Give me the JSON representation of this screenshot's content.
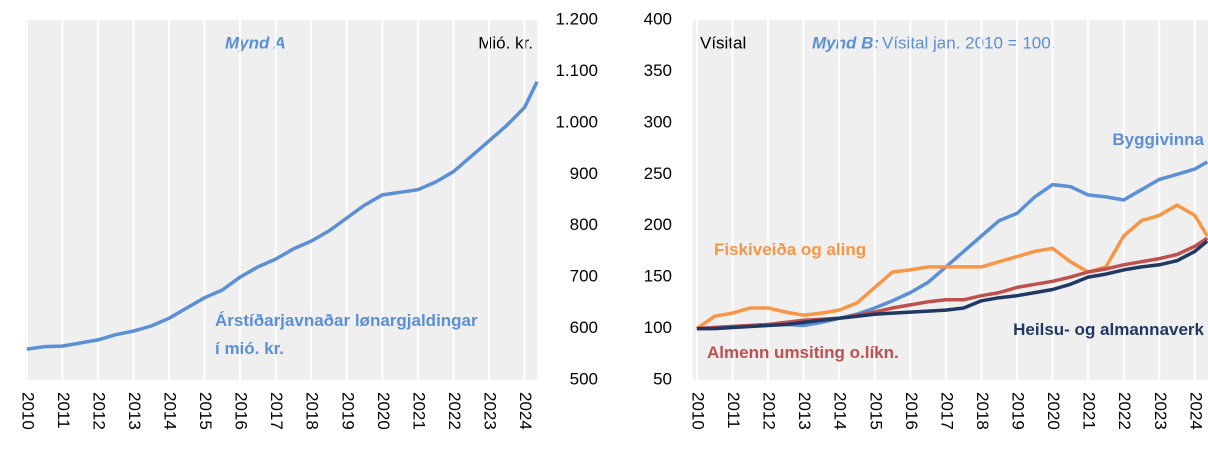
{
  "chart_data": [
    {
      "type": "line",
      "title": "Mynd A",
      "unit_label": "Mió. kr.",
      "yaxis_position": "right",
      "grid": "x",
      "background": "#efefef",
      "xlim": [
        2009.95,
        2024.35
      ],
      "xticks": [
        2010,
        2011,
        2012,
        2013,
        2014,
        2015,
        2016,
        2017,
        2018,
        2019,
        2020,
        2021,
        2022,
        2023,
        2024
      ],
      "ylim": [
        500,
        1200
      ],
      "yticks": [
        500,
        600,
        700,
        800,
        900,
        {
          "value": 1000,
          "label": "1.000"
        },
        {
          "value": 1100,
          "label": "1.100"
        },
        {
          "value": 1200,
          "label": "1.200"
        }
      ],
      "x": [
        2010,
        2010.5,
        2011,
        2011.5,
        2012,
        2012.5,
        2013,
        2013.5,
        2014,
        2014.5,
        2015,
        2015.5,
        2016,
        2016.5,
        2017,
        2017.5,
        2018,
        2018.5,
        2019,
        2019.5,
        2020,
        2020.5,
        2021,
        2021.5,
        2022,
        2022.5,
        2023,
        2023.5,
        2024,
        2024.35
      ],
      "series": [
        {
          "name": "Árstíðarjavnaðar lønargjaldingar í mió. kr.",
          "color": "#5b8fd6",
          "values": [
            560,
            565,
            566,
            572,
            578,
            588,
            595,
            605,
            620,
            640,
            660,
            675,
            700,
            720,
            735,
            755,
            770,
            790,
            815,
            840,
            860,
            865,
            870,
            885,
            905,
            935,
            965,
            995,
            1030,
            1080
          ]
        }
      ]
    },
    {
      "type": "line",
      "title": "Mynd B:",
      "subtitle": "Vísital jan. 2010 = 100.",
      "ylabel": "Vísital",
      "yaxis_position": "left",
      "grid": "x",
      "background": "#efefef",
      "xlim": [
        2009.89,
        2024.37
      ],
      "xticks": [
        2010,
        2011,
        2012,
        2013,
        2014,
        2015,
        2016,
        2017,
        2018,
        2019,
        2020,
        2021,
        2022,
        2023,
        2024
      ],
      "ylim": [
        50,
        400
      ],
      "yticks": [
        50,
        100,
        150,
        200,
        250,
        300,
        350,
        400
      ],
      "x": [
        2010,
        2010.5,
        2011,
        2011.5,
        2012,
        2012.5,
        2013,
        2013.5,
        2014,
        2014.5,
        2015,
        2015.5,
        2016,
        2016.5,
        2017,
        2017.5,
        2018,
        2018.5,
        2019,
        2019.5,
        2020,
        2020.5,
        2021,
        2021.5,
        2022,
        2022.5,
        2023,
        2023.5,
        2024,
        2024.35
      ],
      "series": [
        {
          "name": "Byggivinna",
          "color": "#5b8fd6",
          "values": [
            100,
            101,
            102,
            103,
            104,
            104,
            103,
            106,
            110,
            114,
            120,
            127,
            135,
            145,
            160,
            175,
            190,
            205,
            212,
            228,
            240,
            238,
            230,
            228,
            225,
            235,
            245,
            250,
            255,
            262
          ]
        },
        {
          "name": "Fiskiveiða og aling",
          "color": "#f79646",
          "values": [
            100,
            112,
            115,
            120,
            120,
            116,
            113,
            115,
            118,
            125,
            140,
            155,
            157,
            160,
            160,
            160,
            160,
            165,
            170,
            175,
            178,
            165,
            155,
            160,
            190,
            205,
            210,
            220,
            210,
            190
          ]
        },
        {
          "name": "Almenn umsiting o.líkn.",
          "color": "#c0504d",
          "values": [
            100,
            101,
            102,
            103,
            104,
            106,
            108,
            109,
            110,
            113,
            116,
            120,
            123,
            126,
            128,
            128,
            132,
            135,
            140,
            143,
            146,
            150,
            155,
            158,
            162,
            165,
            168,
            172,
            180,
            188
          ]
        },
        {
          "name": "Heilsu- og almannaverk",
          "color": "#1f3864",
          "values": [
            100,
            100,
            101,
            102,
            103,
            104,
            106,
            108,
            110,
            112,
            114,
            115,
            116,
            117,
            118,
            120,
            127,
            130,
            132,
            135,
            138,
            143,
            150,
            153,
            157,
            160,
            162,
            166,
            175,
            185
          ]
        }
      ]
    }
  ]
}
